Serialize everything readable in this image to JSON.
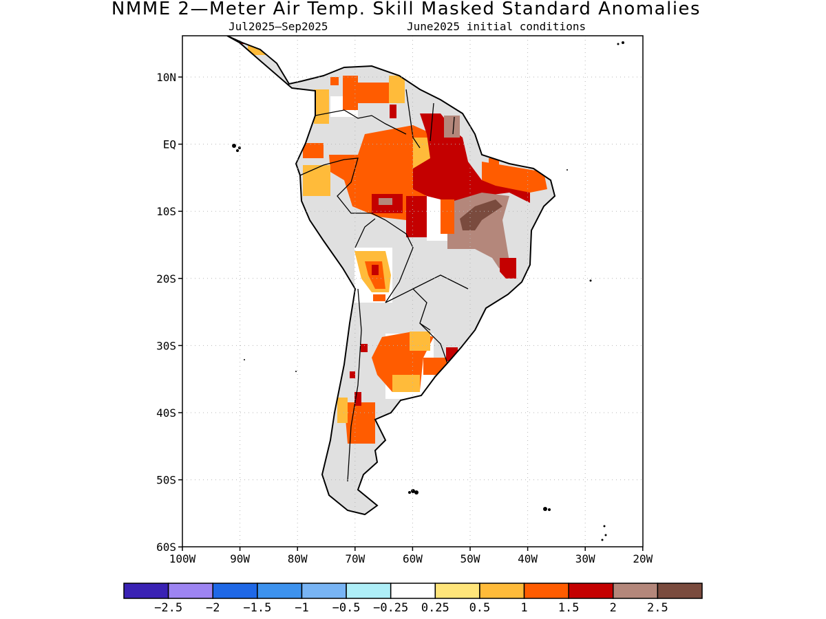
{
  "title": "NMME 2—Meter Air Temp. Skill Masked Standard Anomalies",
  "subtitle_left": "Jul2025—Sep2025",
  "subtitle_right": "June2025 initial conditions",
  "lat_labels": [
    "10N",
    "EQ",
    "10S",
    "20S",
    "30S",
    "40S",
    "50S",
    "60S"
  ],
  "lon_labels": [
    "100W",
    "90W",
    "80W",
    "70W",
    "60W",
    "50W",
    "40W",
    "30W",
    "20W"
  ],
  "colorbar": {
    "colors": [
      "#3a22b4",
      "#9d84f2",
      "#1f68e6",
      "#3d92ee",
      "#78b4f4",
      "#aeeef7",
      "#ffffff",
      "#ffe57a",
      "#ffbb3a",
      "#ff5c00",
      "#c40000",
      "#b4877b",
      "#7a4b3e"
    ],
    "labels": [
      "−2.5",
      "−2",
      "−1.5",
      "−1",
      "−0.5",
      "−0.25",
      "0.25",
      "0.5",
      "1",
      "1.5",
      "2",
      "2.5"
    ]
  },
  "legend_colors": {
    "masked": "#e0e0e0",
    "land_outline": "#000000"
  }
}
